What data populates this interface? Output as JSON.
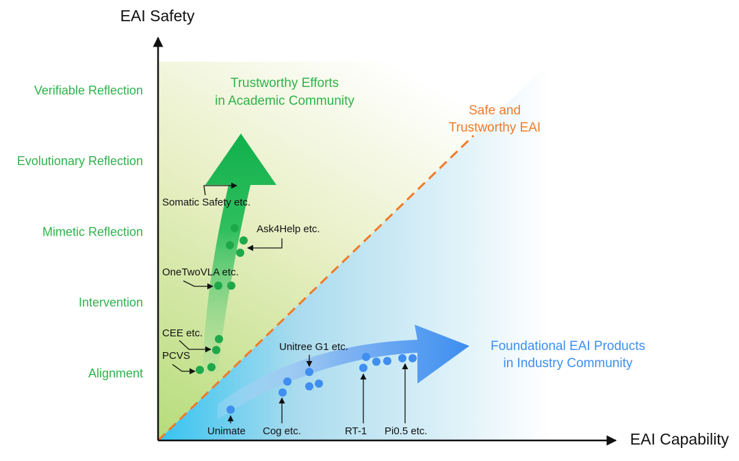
{
  "axes": {
    "y_label": "EAI Safety",
    "x_label": "EAI Capability"
  },
  "levels": [
    "Verifiable Reflection",
    "Evolutionary Reflection",
    "Mimetic Reflection",
    "Intervention",
    "Alignment"
  ],
  "regions": [
    {
      "lines": [
        "Trustworthy Efforts",
        "in Academic Community"
      ]
    },
    {
      "lines": [
        "Safe and",
        "Trustworthy EAI"
      ]
    },
    {
      "lines": [
        "Foundational EAI Products",
        "in Industry Community"
      ]
    }
  ],
  "annotations": [
    "Somatic Safety etc.",
    "Ask4Help etc.",
    "OneTwoVLA etc.",
    "CEE etc.",
    "PCVS",
    "Unitree G1 etc.",
    "Unimate",
    "Cog etc.",
    "RT-1",
    "Pi0.5 etc."
  ]
}
